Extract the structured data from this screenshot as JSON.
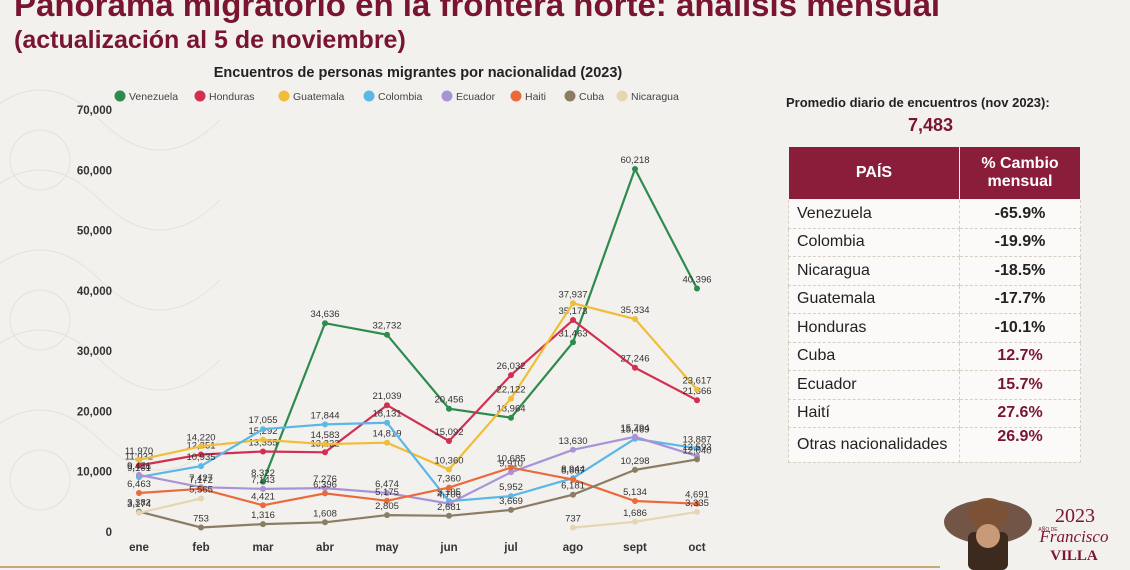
{
  "header": {
    "title": "Panorama migratorio en la frontera norte: análisis mensual",
    "subtitle": "(actualización al 5 de noviembre)"
  },
  "chart_data": {
    "type": "line",
    "title": "Encuentros de personas migrantes por nacionalidad (2023)",
    "categories": [
      "ene",
      "feb",
      "mar",
      "abr",
      "may",
      "jun",
      "jul",
      "ago",
      "sept",
      "oct"
    ],
    "ylim": [
      0,
      70000
    ],
    "yticks": [
      0,
      10000,
      20000,
      30000,
      40000,
      50000,
      60000,
      70000
    ],
    "ytick_labels": [
      "0",
      "10,000",
      "20,000",
      "30,000",
      "40,000",
      "50,000",
      "60,000",
      "70,000"
    ],
    "legend_position": "top",
    "grid": false,
    "series": [
      {
        "name": "Venezuela",
        "color": "#2e8b4e",
        "values": [
          9416,
          null,
          8322,
          34636,
          32732,
          20456,
          18964,
          31463,
          60218,
          40396
        ],
        "labels": [
          "9,416",
          "",
          "8,322",
          "34,636",
          "32,732",
          "20,456",
          "18,964",
          "31,463",
          "60,218",
          "40,396"
        ]
      },
      {
        "name": "Honduras",
        "color": "#d22f52",
        "values": [
          11032,
          12851,
          13355,
          13222,
          21039,
          15092,
          26032,
          35173,
          27246,
          21866
        ],
        "labels": [
          "11,032",
          "12,851",
          "13,355",
          "13,222",
          "21,039",
          "15,092",
          "26,032",
          "35,173",
          "27,246",
          "21,866"
        ]
      },
      {
        "name": "Guatemala",
        "color": "#efbd37",
        "values": [
          11970,
          14220,
          15292,
          14583,
          14819,
          10360,
          22122,
          37937,
          35334,
          23617
        ],
        "labels": [
          "11,970",
          "14,220",
          "15,292",
          "14,583",
          "14,819",
          "10,360",
          "22,122",
          "37,937",
          "35,334",
          "23,617"
        ]
      },
      {
        "name": "Colombia",
        "color": "#5bb7e6",
        "values": [
          9101,
          10935,
          17055,
          17844,
          18131,
          5105,
          5952,
          8944,
          15469,
          13887
        ],
        "labels": [
          "9,101",
          "10,935",
          "17,055",
          "17,844",
          "18,131",
          "5,105",
          "5,952",
          "8,944",
          "15,469",
          "13,887"
        ]
      },
      {
        "name": "Ecuador",
        "color": "#a993d6",
        "values": [
          9471,
          7427,
          7143,
          7276,
          6474,
          4706,
          9910,
          13630,
          15794,
          12593
        ],
        "labels": [
          "9,471",
          "7,427",
          "7,143",
          "7,276",
          "6,474",
          "4,706",
          "9,910",
          "13,630",
          "15,794",
          "12,593"
        ]
      },
      {
        "name": "Haiti",
        "color": "#ea6a3c",
        "values": [
          6463,
          7172,
          4421,
          6396,
          5175,
          7360,
          10685,
          8687,
          5134,
          4691
        ],
        "labels": [
          "6,463",
          "7,172",
          "4,421",
          "6,396",
          "5,175",
          "7,360",
          "10,685",
          "8,687",
          "5,134",
          "4,691"
        ]
      },
      {
        "name": "Cuba",
        "color": "#8a7d63",
        "values": [
          3382,
          753,
          1316,
          1608,
          2805,
          2681,
          3669,
          6181,
          10298,
          12040
        ],
        "labels": [
          "3,382",
          "753",
          "1,316",
          "1,608",
          "2,805",
          "2,681",
          "3,669",
          "6,181",
          "10,298",
          "12,040"
        ]
      },
      {
        "name": "Nicaragua",
        "color": "#e6d5b1",
        "values": [
          3174,
          5565,
          null,
          null,
          null,
          null,
          null,
          737,
          1686,
          3335
        ],
        "labels": [
          "3,174",
          "5,565",
          "",
          "",
          "",
          "",
          "",
          "737",
          "1,686",
          "3,335"
        ]
      }
    ]
  },
  "side_panel": {
    "avg_label": "Promedio diario de encuentros (nov 2023):",
    "avg_value": "7,483",
    "table": {
      "headers": [
        "PAÍS",
        "% Cambio mensual"
      ],
      "rows": [
        {
          "country": "Venezuela",
          "change": "-65.9%",
          "color": "#222222"
        },
        {
          "country": "Colombia",
          "change": "-19.9%",
          "color": "#222222"
        },
        {
          "country": "Nicaragua",
          "change": "-18.5%",
          "color": "#222222"
        },
        {
          "country": "Guatemala",
          "change": "-17.7%",
          "color": "#222222"
        },
        {
          "country": "Honduras",
          "change": "-10.1%",
          "color": "#222222"
        },
        {
          "country": "Cuba",
          "change": "12.7%",
          "color": "#7a1530"
        },
        {
          "country": "Ecuador",
          "change": "15.7%",
          "color": "#7a1530"
        },
        {
          "country": "Haití",
          "change": "27.6%",
          "color": "#7a1530"
        },
        {
          "country": "Otras nacionalidades",
          "change": "26.9%",
          "color": "#7a1530"
        }
      ]
    }
  },
  "logo": {
    "year": "2023",
    "small_text": "AÑO DE",
    "name1": "Francisco",
    "name2": "VILLA"
  }
}
